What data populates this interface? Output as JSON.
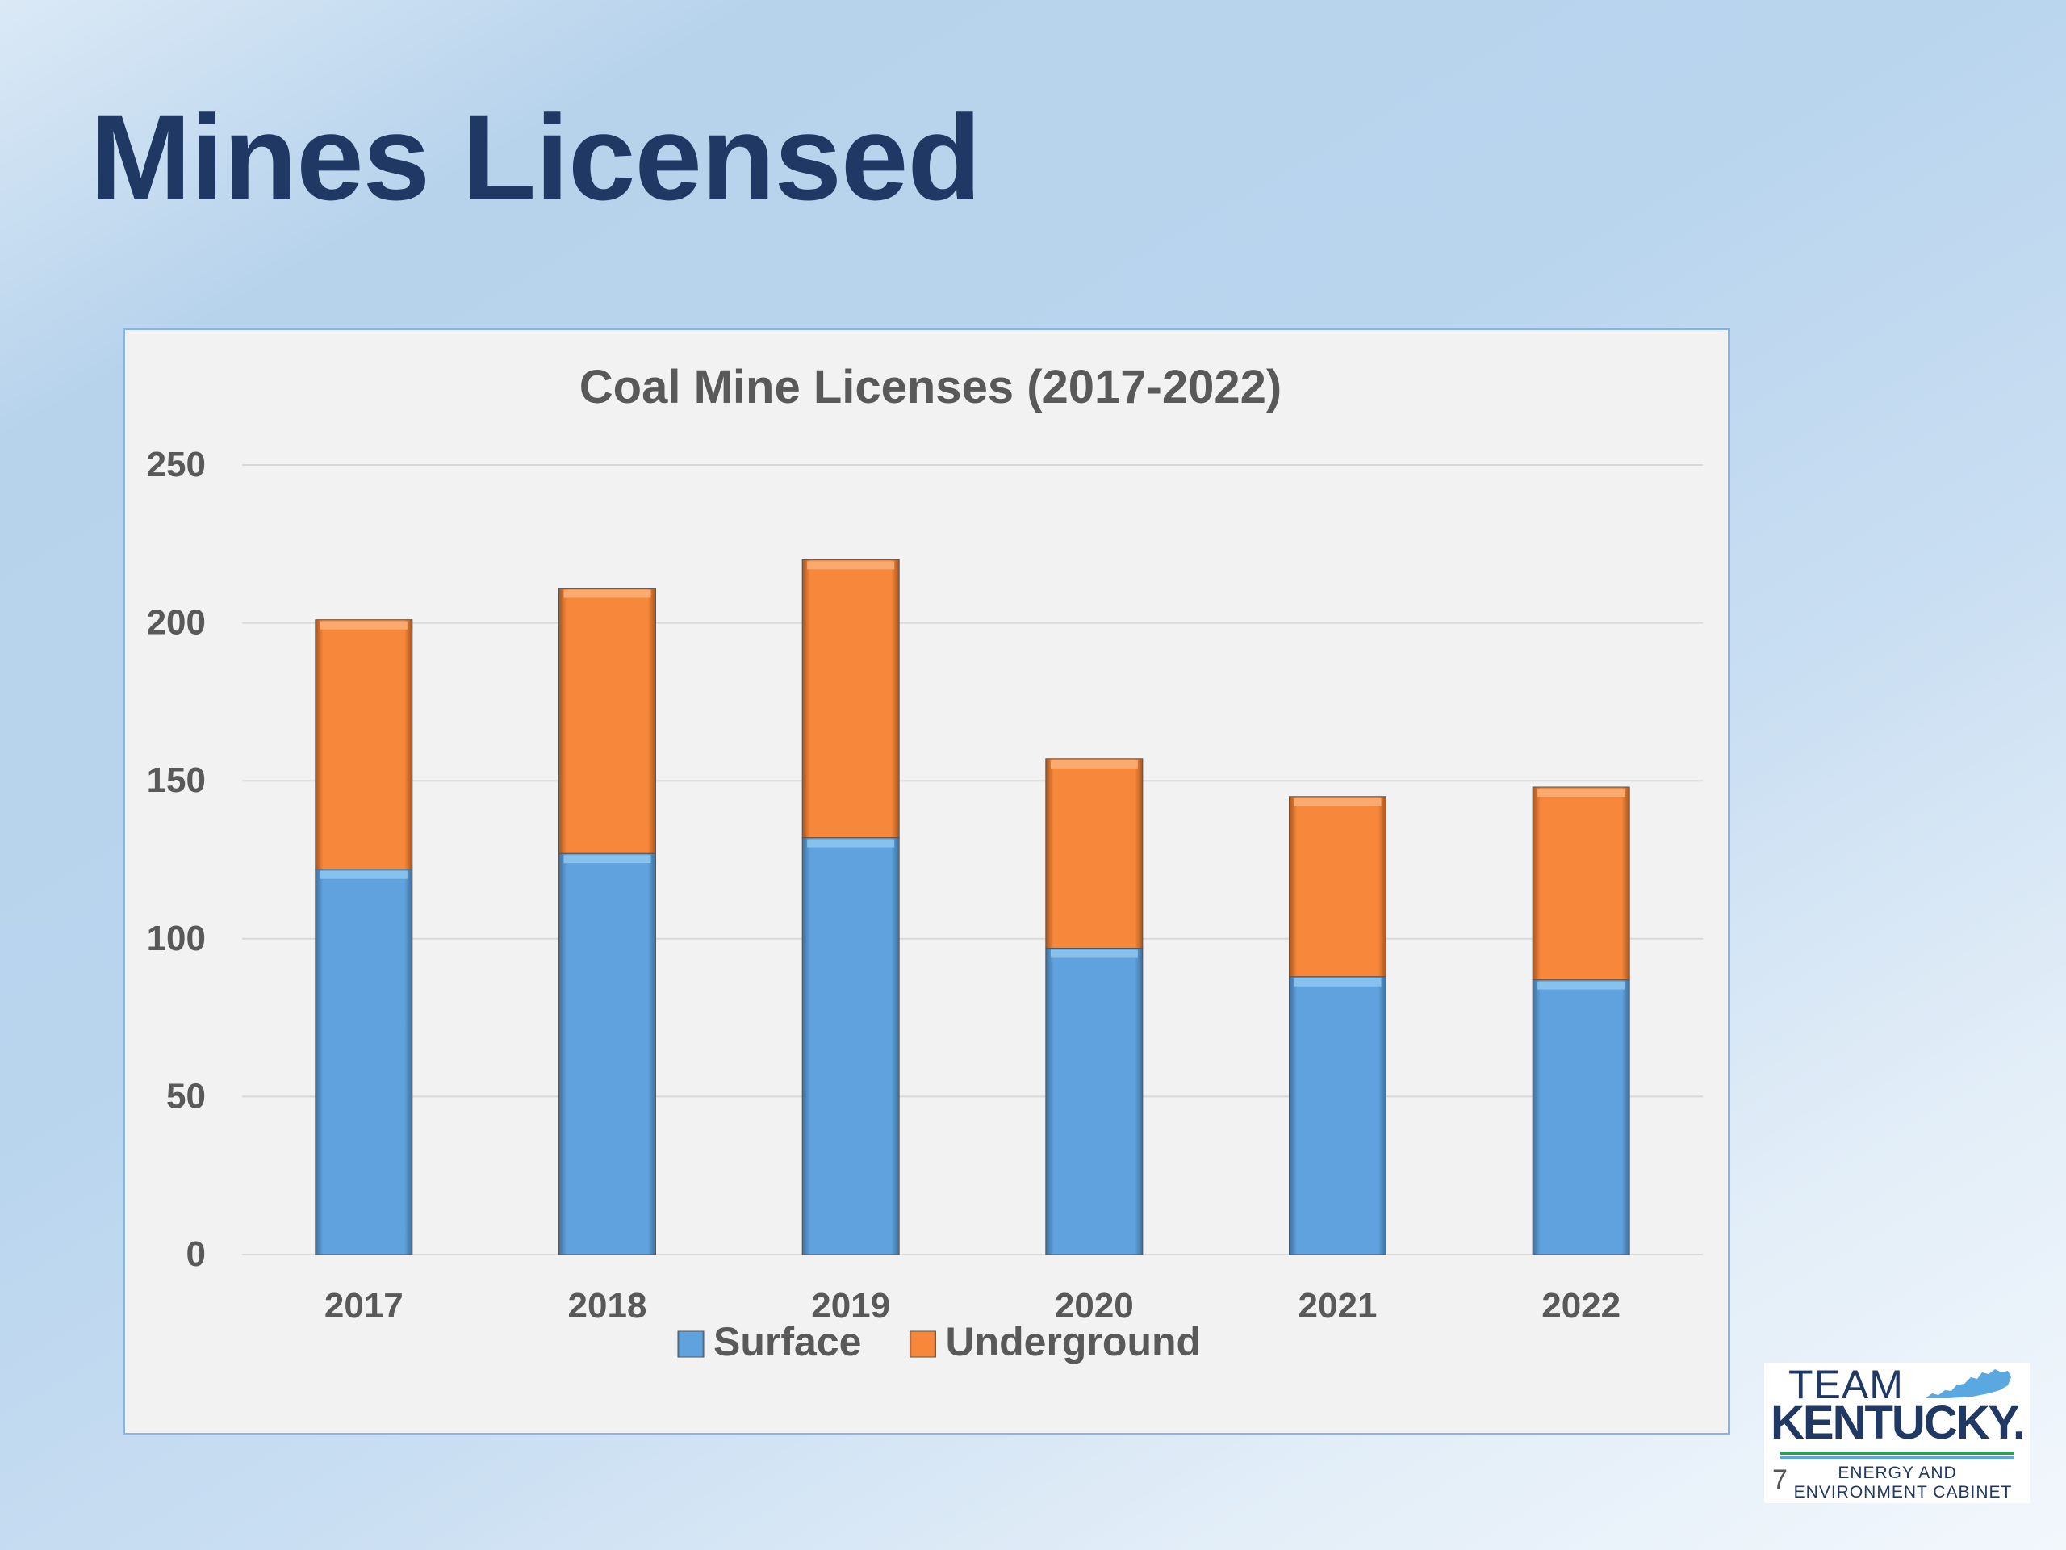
{
  "slide": {
    "title": "Mines Licensed",
    "slide_number": "7"
  },
  "logo": {
    "line1": "TEAM",
    "line2": "KENTUCKY.",
    "line3": "ENERGY AND",
    "line4": "ENVIRONMENT CABINET"
  },
  "colors": {
    "surface": "#5fa2dd",
    "underground": "#f7873a",
    "title": "#1f3864"
  },
  "chart_data": {
    "type": "bar",
    "stacked": true,
    "title": "Coal Mine Licenses (2017-2022)",
    "xlabel": "",
    "ylabel": "",
    "categories": [
      "2017",
      "2018",
      "2019",
      "2020",
      "2021",
      "2022"
    ],
    "series": [
      {
        "name": "Surface",
        "values": [
          122,
          127,
          132,
          97,
          88,
          87
        ],
        "color": "#5fa2dd"
      },
      {
        "name": "Underground",
        "values": [
          79,
          84,
          88,
          60,
          57,
          61
        ],
        "color": "#f7873a"
      }
    ],
    "ylim": [
      0,
      250
    ],
    "yticks": [
      0,
      50,
      100,
      150,
      200,
      250
    ],
    "grid": true,
    "legend_position": "bottom"
  }
}
